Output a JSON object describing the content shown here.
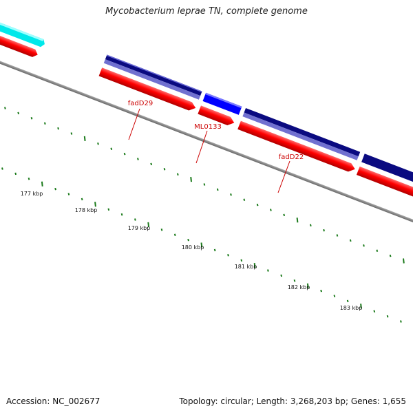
{
  "title": "Mycobacterium leprae TN, complete genome",
  "footer": {
    "accession": "Accession: NC_002677",
    "summary": "Topology: circular; Length: 3,268,203 bp; Genes: 1,655"
  },
  "ruler_labels": [
    "177 kbp",
    "178 kbp",
    "179 kbp",
    "180 kbp",
    "181 kbp",
    "182 kbp",
    "183 kbp"
  ],
  "gene_labels": [
    "fadD29",
    "ML0133",
    "fadD22"
  ],
  "colors": {
    "forward_cds": "#ff0000",
    "gene_dark": "#0a0a80",
    "gene_light": "#7070d0",
    "gene_blue": "#0000ff",
    "gene_cyan": "#00ffff",
    "ticks": "#1a7a1a",
    "backbone": "#808080",
    "label_red": "#cc0000"
  }
}
